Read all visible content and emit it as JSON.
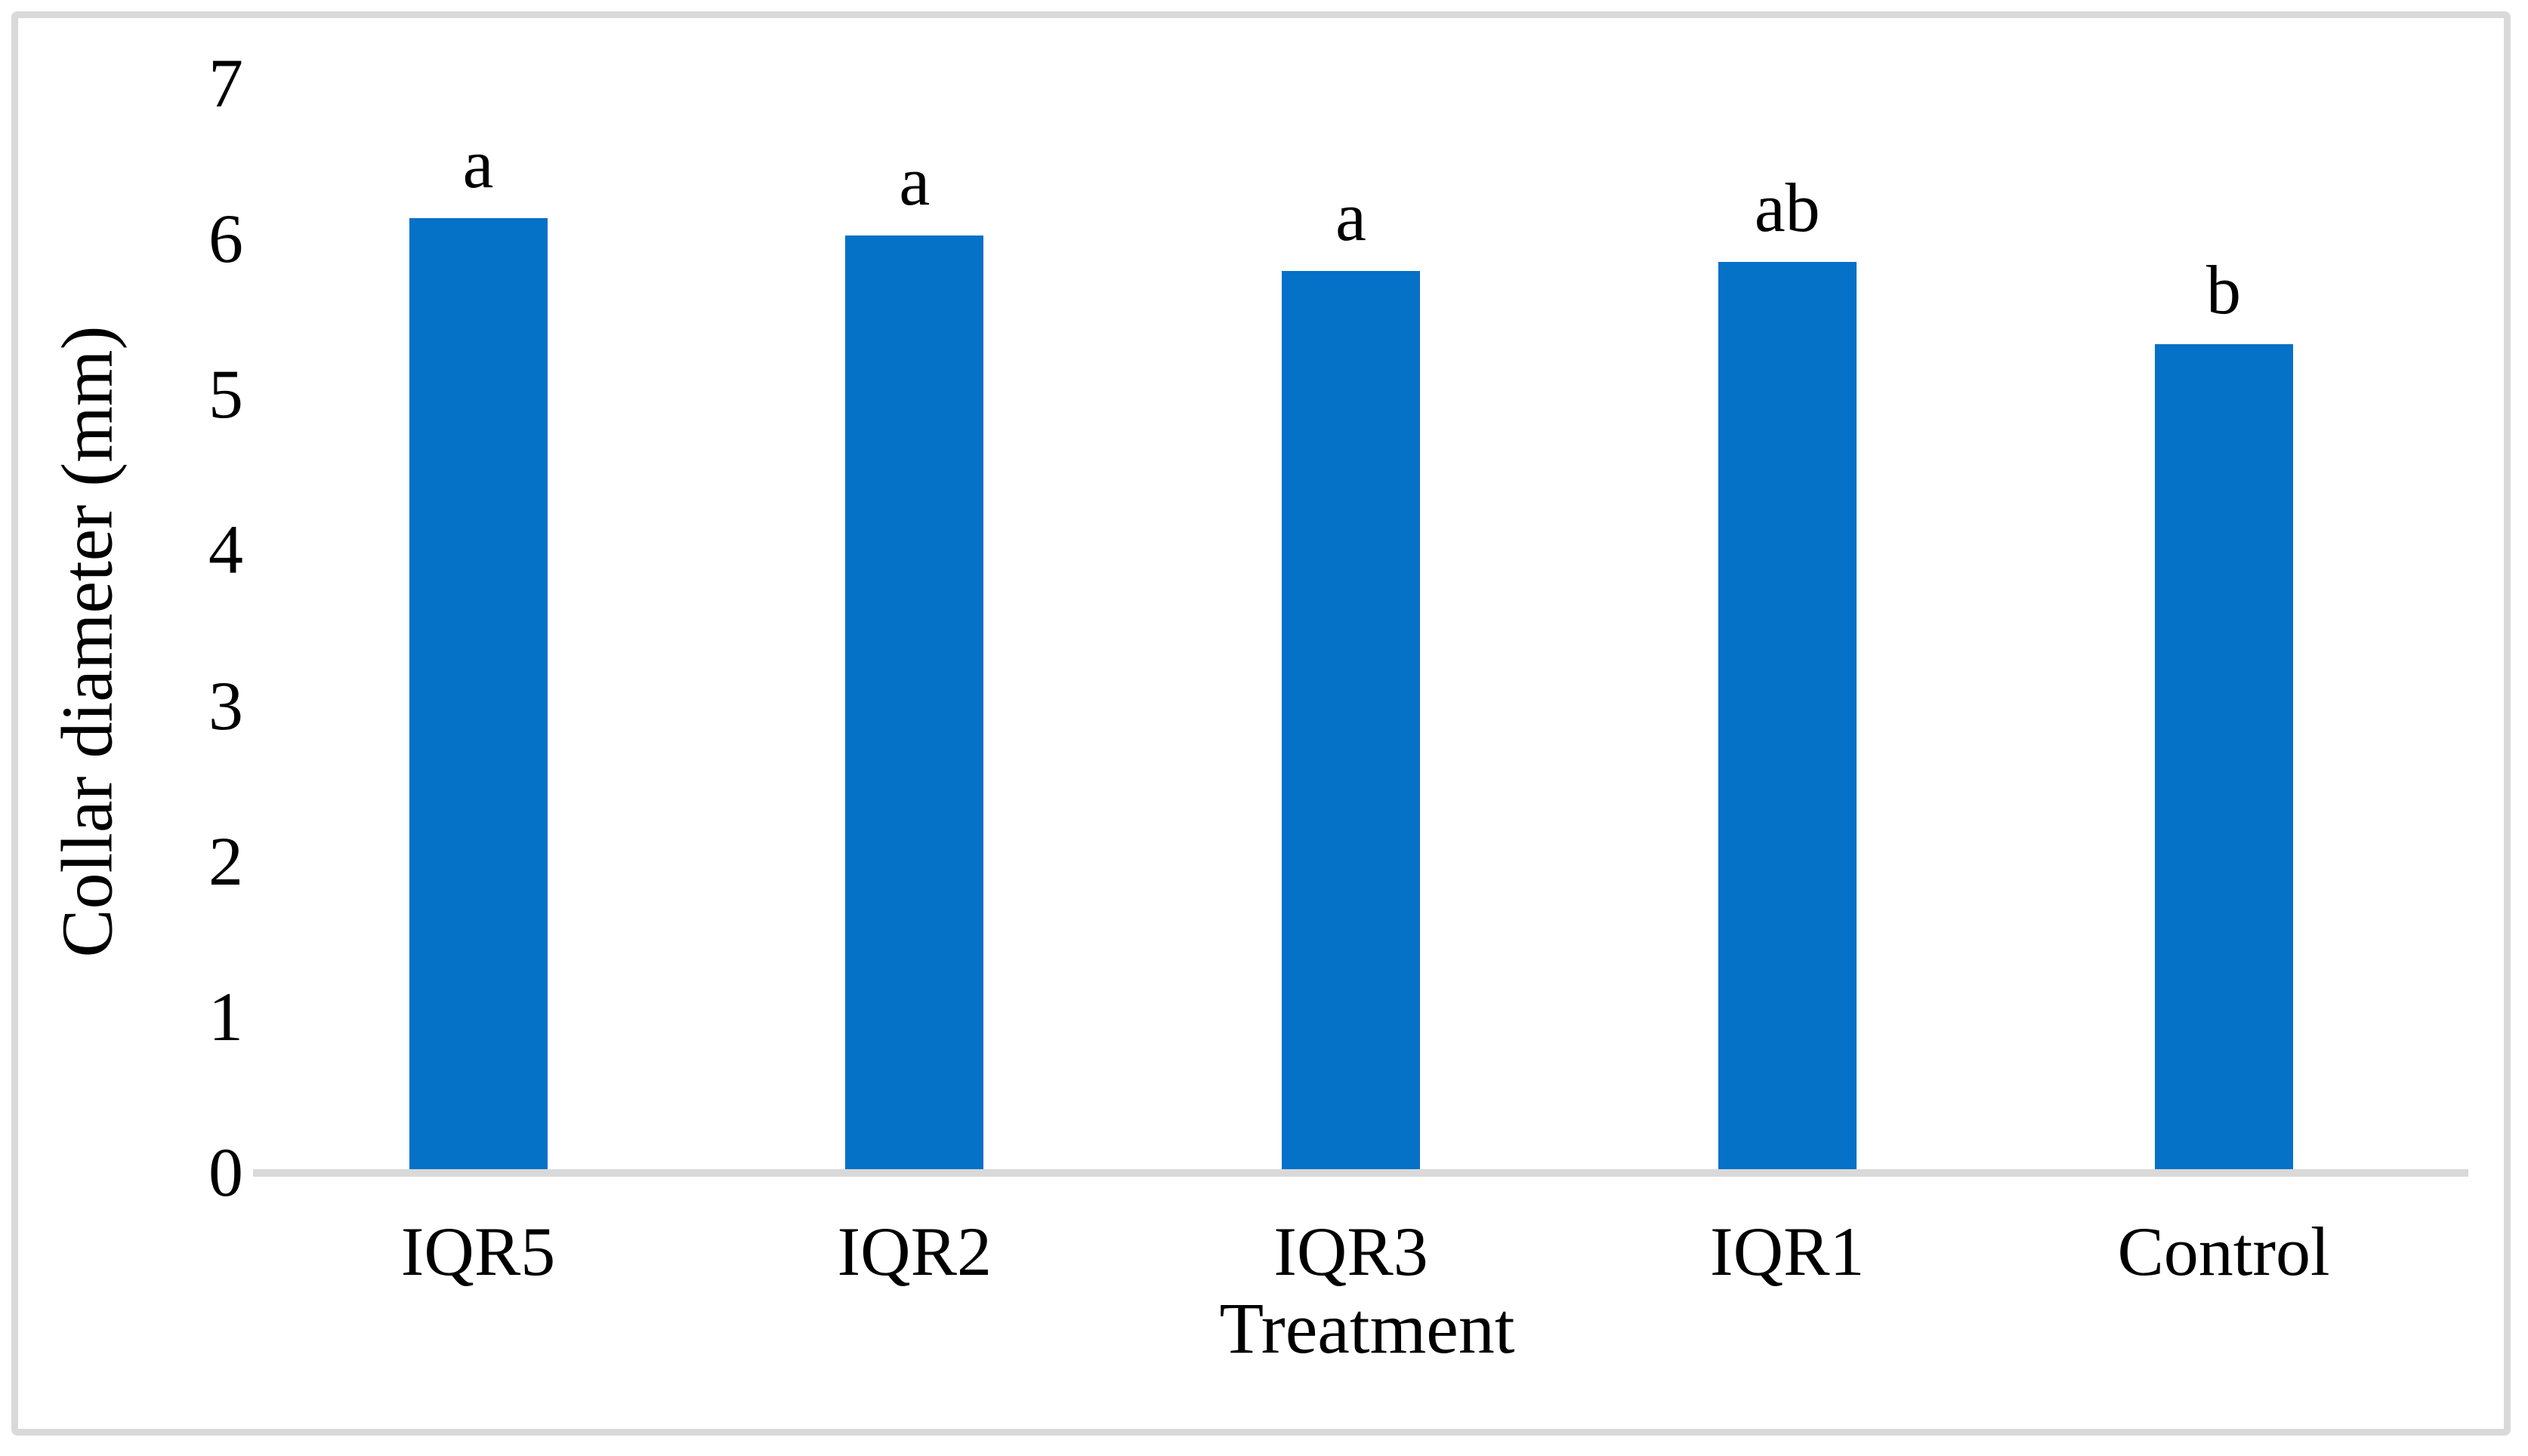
{
  "chart_data": {
    "type": "bar",
    "categories": [
      "IQR5",
      "IQR2",
      "IQR3",
      "IQR1",
      "Control"
    ],
    "values": [
      6.13,
      6.02,
      5.79,
      5.85,
      5.32
    ],
    "significance_letters": [
      "a",
      "a",
      "a",
      "ab",
      "b"
    ],
    "title": "",
    "xlabel": "Treatment",
    "ylabel": "Collar diameter (mm)",
    "ylim": [
      0,
      7
    ],
    "yticks": [
      "0",
      "1",
      "2",
      "3",
      "4",
      "5",
      "6",
      "7"
    ],
    "grid": false,
    "legend": "none",
    "bar_color": "#0571C7",
    "axis_line_color": "#D9D9D9",
    "frame_border_color": "#D9D9D9",
    "text_color": "#000000"
  }
}
